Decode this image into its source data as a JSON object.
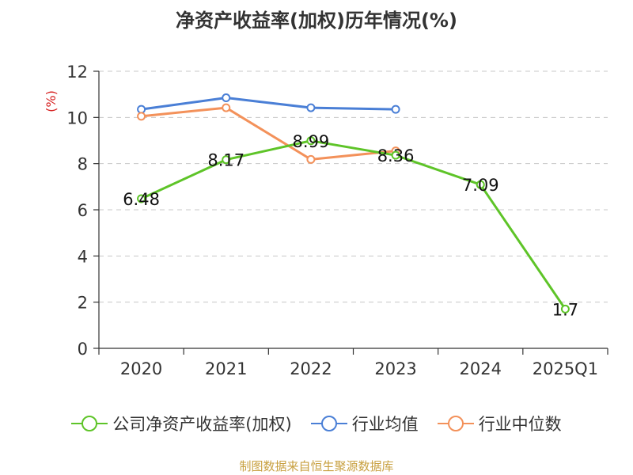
{
  "chart_data": {
    "type": "line",
    "title": "净资产收益率(加权)历年情况(%)",
    "ylabel": "(%)",
    "categories": [
      "2020",
      "2021",
      "2022",
      "2023",
      "2024",
      "2025Q1"
    ],
    "ylim": [
      0,
      12
    ],
    "yticks": [
      0,
      2,
      4,
      6,
      8,
      10,
      12
    ],
    "grid": true,
    "series": [
      {
        "name": "公司净资产收益率(加权)",
        "color": "#5ec428",
        "values": [
          6.48,
          8.17,
          8.99,
          8.36,
          7.09,
          1.7
        ],
        "labels": [
          "6.48",
          "8.17",
          "8.99",
          "8.36",
          "7.09",
          "1.7"
        ]
      },
      {
        "name": "行业均值",
        "color": "#4a7fd6",
        "values": [
          10.35,
          10.85,
          10.42,
          10.35,
          null,
          null
        ]
      },
      {
        "name": "行业中位数",
        "color": "#f3915a",
        "values": [
          10.05,
          10.42,
          8.18,
          8.55,
          null,
          null
        ]
      }
    ],
    "legend_position": "bottom",
    "source": "制图数据来自恒生聚源数据库"
  }
}
